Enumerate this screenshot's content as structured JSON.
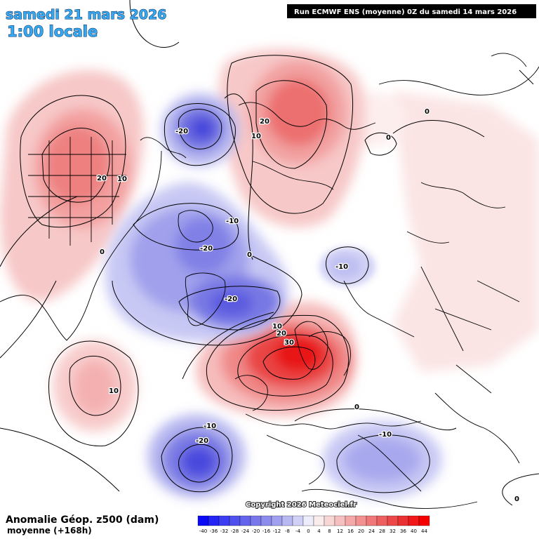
{
  "header": {
    "date": "samedi 21 mars 2026",
    "time": "1:00 locale",
    "run": "Run ECMWF ENS (moyenne) 0Z du samedi 14 mars 2026"
  },
  "footer": {
    "title": "Anomalie Géop. z500 (dam)",
    "subtitle": "moyenne  (+168h)",
    "copyright": "Copyright 2026 Meteociel.fr"
  },
  "legend": {
    "ticks": [
      "-40",
      "-36",
      "-32",
      "-28",
      "-24",
      "-20",
      "-16",
      "-12",
      "-8",
      "-4",
      "0",
      "4",
      "8",
      "12",
      "16",
      "20",
      "24",
      "28",
      "32",
      "36",
      "40",
      "44"
    ],
    "colors": [
      "#0a0af5",
      "#2424f5",
      "#3c3cf2",
      "#5050ee",
      "#6464ec",
      "#7878ea",
      "#8c8cec",
      "#a0a0ef",
      "#b8b8f3",
      "#d0d0f7",
      "#ececfb",
      "#fbecec",
      "#f9d6d6",
      "#f7c0c0",
      "#f5a8a8",
      "#f39090",
      "#f07878",
      "#ee6060",
      "#ec4848",
      "#ea3030",
      "#f01818",
      "#f50000"
    ]
  },
  "labels": {
    "na_pos": "20",
    "na_pos_outer": "10",
    "east_na_zero": "0",
    "aleut_neg": "-20",
    "arctic_pos": "20",
    "arctic_pos_outer": "10",
    "siberia_zero_1": "0",
    "siberia_zero_2": "0",
    "canada_neg": "-20",
    "canada_neg_outer": "-10",
    "green_neg": "-20",
    "green_zero": "0",
    "barents_neg": "-10",
    "scand_pos_core": "30",
    "scand_pos_mid": "20",
    "scand_pos_outer": "10",
    "atl_neg_core": "-20",
    "atl_neg_outer": "-10",
    "pac_pos": "10",
    "med_neg": "-10",
    "europe_zero": "0",
    "asia_zero": "0"
  }
}
